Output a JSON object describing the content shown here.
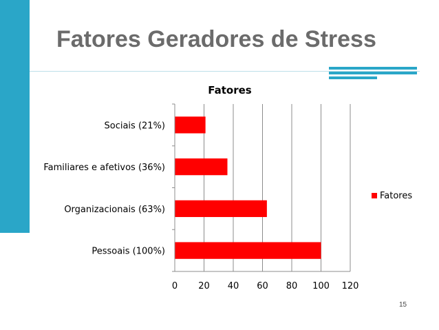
{
  "slide": {
    "title": "Fatores Geradores de Stress",
    "page_number": "15",
    "accent_color": "#2aa6c8"
  },
  "chart_data": {
    "type": "bar",
    "orientation": "horizontal",
    "title": "Fatores",
    "categories": [
      "Pessoais (100%)",
      "Organizacionais (63%)",
      "Familiares e afetivos (36%)",
      "Sociais (21%)"
    ],
    "series": [
      {
        "name": "Fatores",
        "values": [
          100,
          63,
          36,
          21
        ],
        "color": "#ff0000"
      }
    ],
    "xlim": [
      0,
      120
    ],
    "x_ticks": [
      0,
      20,
      40,
      60,
      80,
      100,
      120
    ],
    "grid": "vertical",
    "legend_position": "right"
  }
}
